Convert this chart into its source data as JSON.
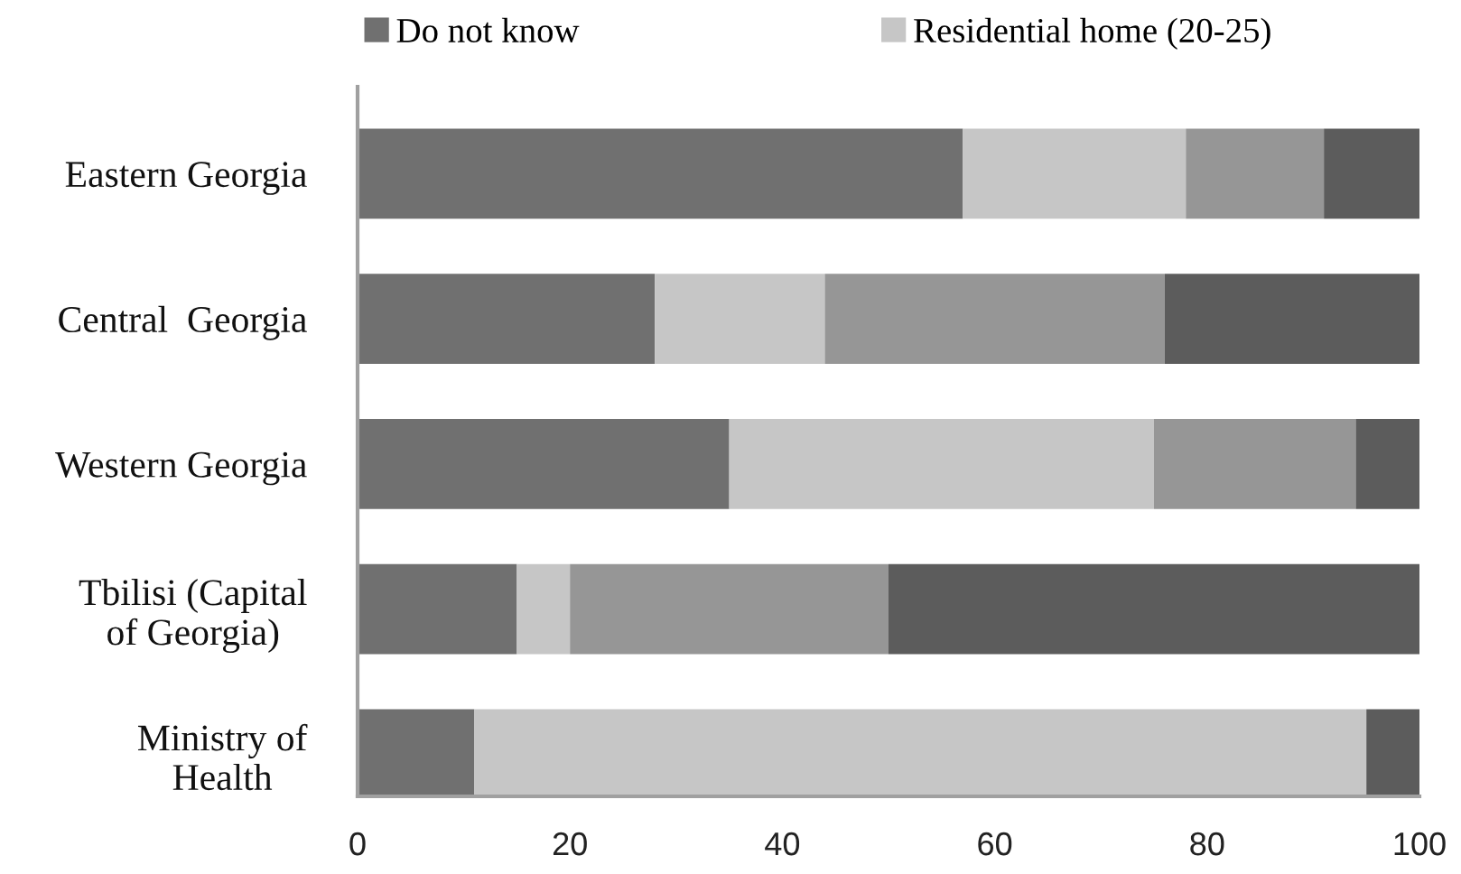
{
  "chart_data": {
    "type": "bar",
    "orientation": "horizontal",
    "stacked": true,
    "categories": [
      "Eastern Georgia",
      "Central  Georgia",
      "Western Georgia",
      "Tbilisi (Capital\nof Georgia)",
      "Ministry of\nHealth"
    ],
    "series": [
      {
        "name": "Do not know",
        "color": "#707070",
        "values": [
          57,
          28,
          35,
          15,
          11
        ]
      },
      {
        "name": "Residential home (20-25)",
        "color": "#c6c6c6",
        "values": [
          21,
          16,
          40,
          5,
          84
        ]
      },
      {
        "color": "#969696",
        "values": [
          13,
          32,
          19,
          30,
          null
        ]
      },
      {
        "color": "#5c5c5c",
        "values": [
          9,
          24,
          6,
          50,
          5
        ]
      }
    ],
    "xlim": [
      0,
      100
    ],
    "xticks": [
      0,
      20,
      40,
      60,
      80,
      100
    ],
    "grid": false,
    "legend": "top"
  }
}
